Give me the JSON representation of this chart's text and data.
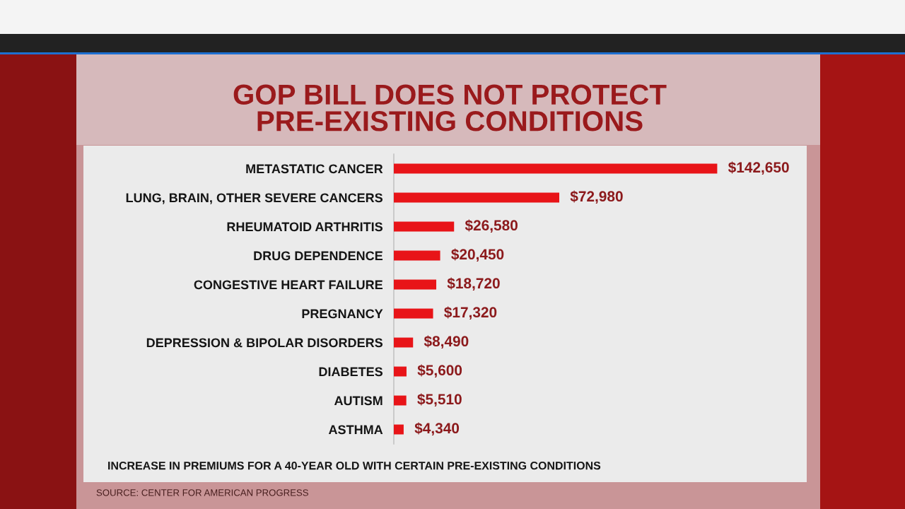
{
  "chart_data": {
    "type": "bar",
    "orientation": "horizontal",
    "title": "GOP BILL DOES NOT PROTECT\nPRE-EXISTING CONDITIONS",
    "categories": [
      "METASTATIC CANCER",
      "LUNG, BRAIN, OTHER SEVERE CANCERS",
      "RHEUMATOID ARTHRITIS",
      "DRUG DEPENDENCE",
      "CONGESTIVE HEART FAILURE",
      "PREGNANCY",
      "DEPRESSION & BIPOLAR DISORDERS",
      "DIABETES",
      "AUTISM",
      "ASTHMA"
    ],
    "values": [
      142650,
      72980,
      26580,
      20450,
      18720,
      17320,
      8490,
      5600,
      5510,
      4340
    ],
    "value_labels": [
      "$142,650",
      "$72,980",
      "$26,580",
      "$20,450",
      "$18,720",
      "$17,320",
      "$8,490",
      "$5,600",
      "$5,510",
      "$4,340"
    ],
    "color": "#e81418",
    "tick_labels": "y",
    "annotations": [
      "INCREASE IN PREMIUMS FOR A 40-YEAR OLD WITH CERTAIN PRE-EXISTING CONDITIONS",
      "SOURCE: CENTER FOR AMERICAN PROGRESS"
    ]
  }
}
